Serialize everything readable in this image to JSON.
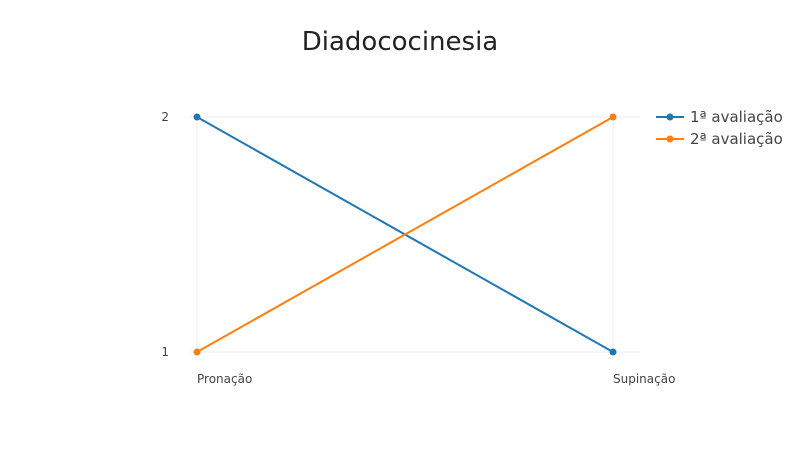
{
  "chart_data": {
    "type": "line",
    "title": "Diadococinesia",
    "xlabel": "",
    "ylabel": "",
    "categories": [
      "Pronação",
      "Supinação"
    ],
    "ylim": [
      1,
      2
    ],
    "yticks": [
      "1",
      "2"
    ],
    "grid": true,
    "legend_position": "top-right",
    "series": [
      {
        "name": "1ª avaliação",
        "values": [
          2,
          1
        ],
        "color": "#1f77b4"
      },
      {
        "name": "2ª avaliação",
        "values": [
          1,
          2
        ],
        "color": "#ff7f0e"
      }
    ]
  }
}
